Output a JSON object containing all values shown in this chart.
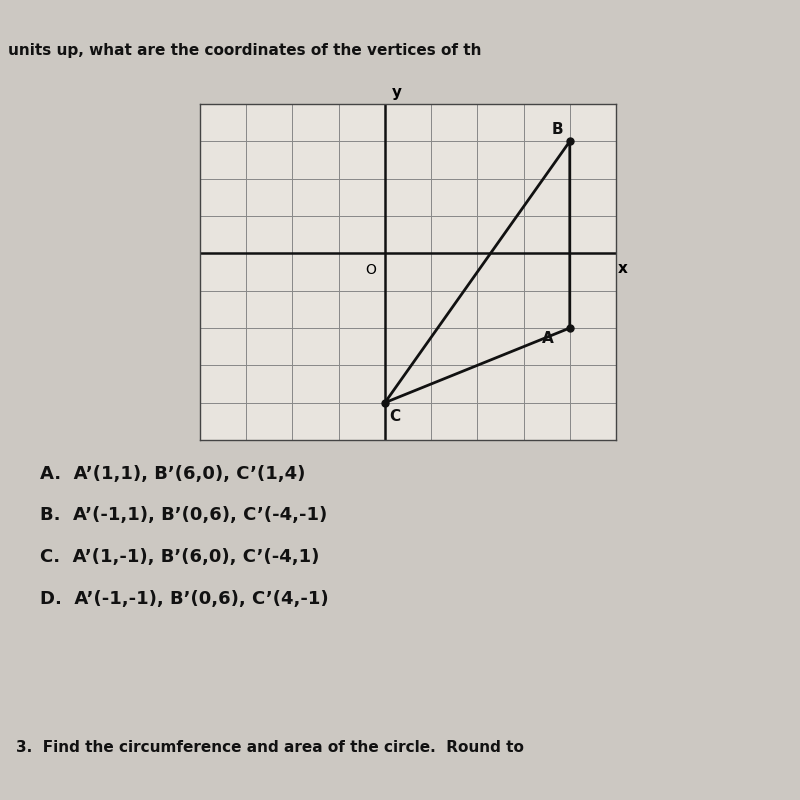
{
  "title_line1": "units up, what are the coordinates of the vertices of th",
  "triangle_vertices": {
    "A": [
      4,
      -2
    ],
    "B": [
      4,
      3
    ],
    "C": [
      0,
      -4
    ]
  },
  "grid_xlim": [
    -4,
    5
  ],
  "grid_ylim": [
    -5,
    4
  ],
  "axis_color": "#111111",
  "triangle_color": "#111111",
  "background_color": "#ccc8c2",
  "plot_bg_color": "#e8e4de",
  "answer_choices": [
    "A.  A’(1,1), B’(6,0), C’(1,4)",
    "B.  A’(-1,1), B’(0,6), C’(-4,-1)",
    "C.  A’(1,-1), B’(6,0), C’(-4,1)",
    "D.  A’(-1,-1), B’(0,6), C’(4,-1)"
  ],
  "footer_text": "3.  Find the circumference and area of the circle.  Round to",
  "vertex_dot_size": 5,
  "line_width": 2.0,
  "fig_width": 8.0,
  "fig_height": 8.0,
  "dpi": 100
}
